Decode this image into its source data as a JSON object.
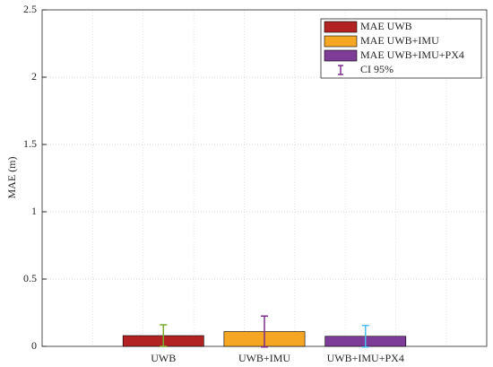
{
  "chart_data": {
    "type": "bar",
    "y_label": "MAE (m)",
    "categories": [
      "UWB",
      "UWB+IMU",
      "UWB+IMU+PX4"
    ],
    "series": [
      {
        "name": "MAE UWB",
        "color": "#b22222",
        "values": [
          0.08,
          null,
          null
        ],
        "errors": [
          0.08,
          null,
          null
        ],
        "error_color": "#77ac30"
      },
      {
        "name": "MAE UWB+IMU",
        "color": "#f5a623",
        "values": [
          null,
          0.11,
          null
        ],
        "errors": [
          null,
          0.115,
          null
        ],
        "error_color": "#7e2f8e"
      },
      {
        "name": "MAE UWB+IMU+PX4",
        "color": "#7d3c98",
        "values": [
          null,
          null,
          0.075
        ],
        "errors": [
          null,
          null,
          0.08
        ],
        "error_color": "#4dbeee"
      }
    ],
    "error_label": "CI 95%",
    "error_legend_color": "#7e2f8e",
    "ylim": [
      0,
      2.5
    ],
    "yticks": [
      0,
      0.5,
      1,
      1.5,
      2,
      2.5
    ],
    "grid": true,
    "legend": "upper right"
  }
}
